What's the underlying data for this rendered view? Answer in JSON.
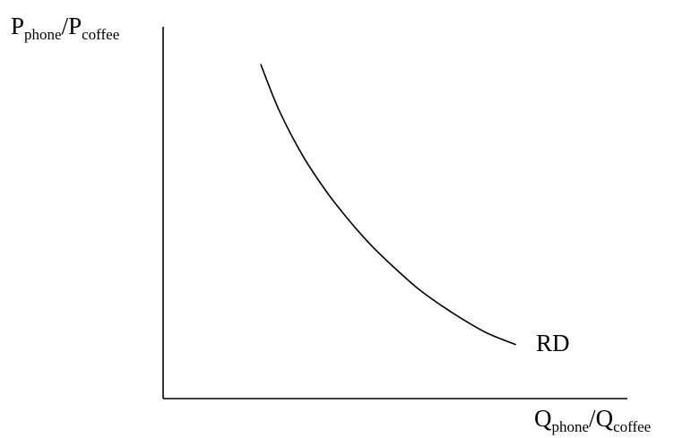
{
  "chart_data": {
    "type": "line",
    "title": "",
    "ylabel": {
      "main1": "P",
      "sub1": "phone",
      "sep": "/",
      "main2": "P",
      "sub2": "coffee"
    },
    "xlabel": {
      "main1": "Q",
      "sub1": "phone",
      "sep": "/",
      "main2": "Q",
      "sub2": "coffee"
    },
    "tick_labels": false,
    "grid": false,
    "xlim": [
      0,
      10
    ],
    "ylim": [
      0,
      10
    ],
    "series": [
      {
        "name": "RD",
        "color": "#000000",
        "x": [
          2.1,
          2.5,
          3.0,
          3.5,
          4.0,
          4.5,
          5.0,
          5.5,
          6.0,
          6.5,
          7.0,
          7.6
        ],
        "y": [
          9.0,
          7.75,
          6.55,
          5.6,
          4.8,
          4.1,
          3.5,
          2.95,
          2.5,
          2.1,
          1.75,
          1.45
        ]
      }
    ]
  }
}
